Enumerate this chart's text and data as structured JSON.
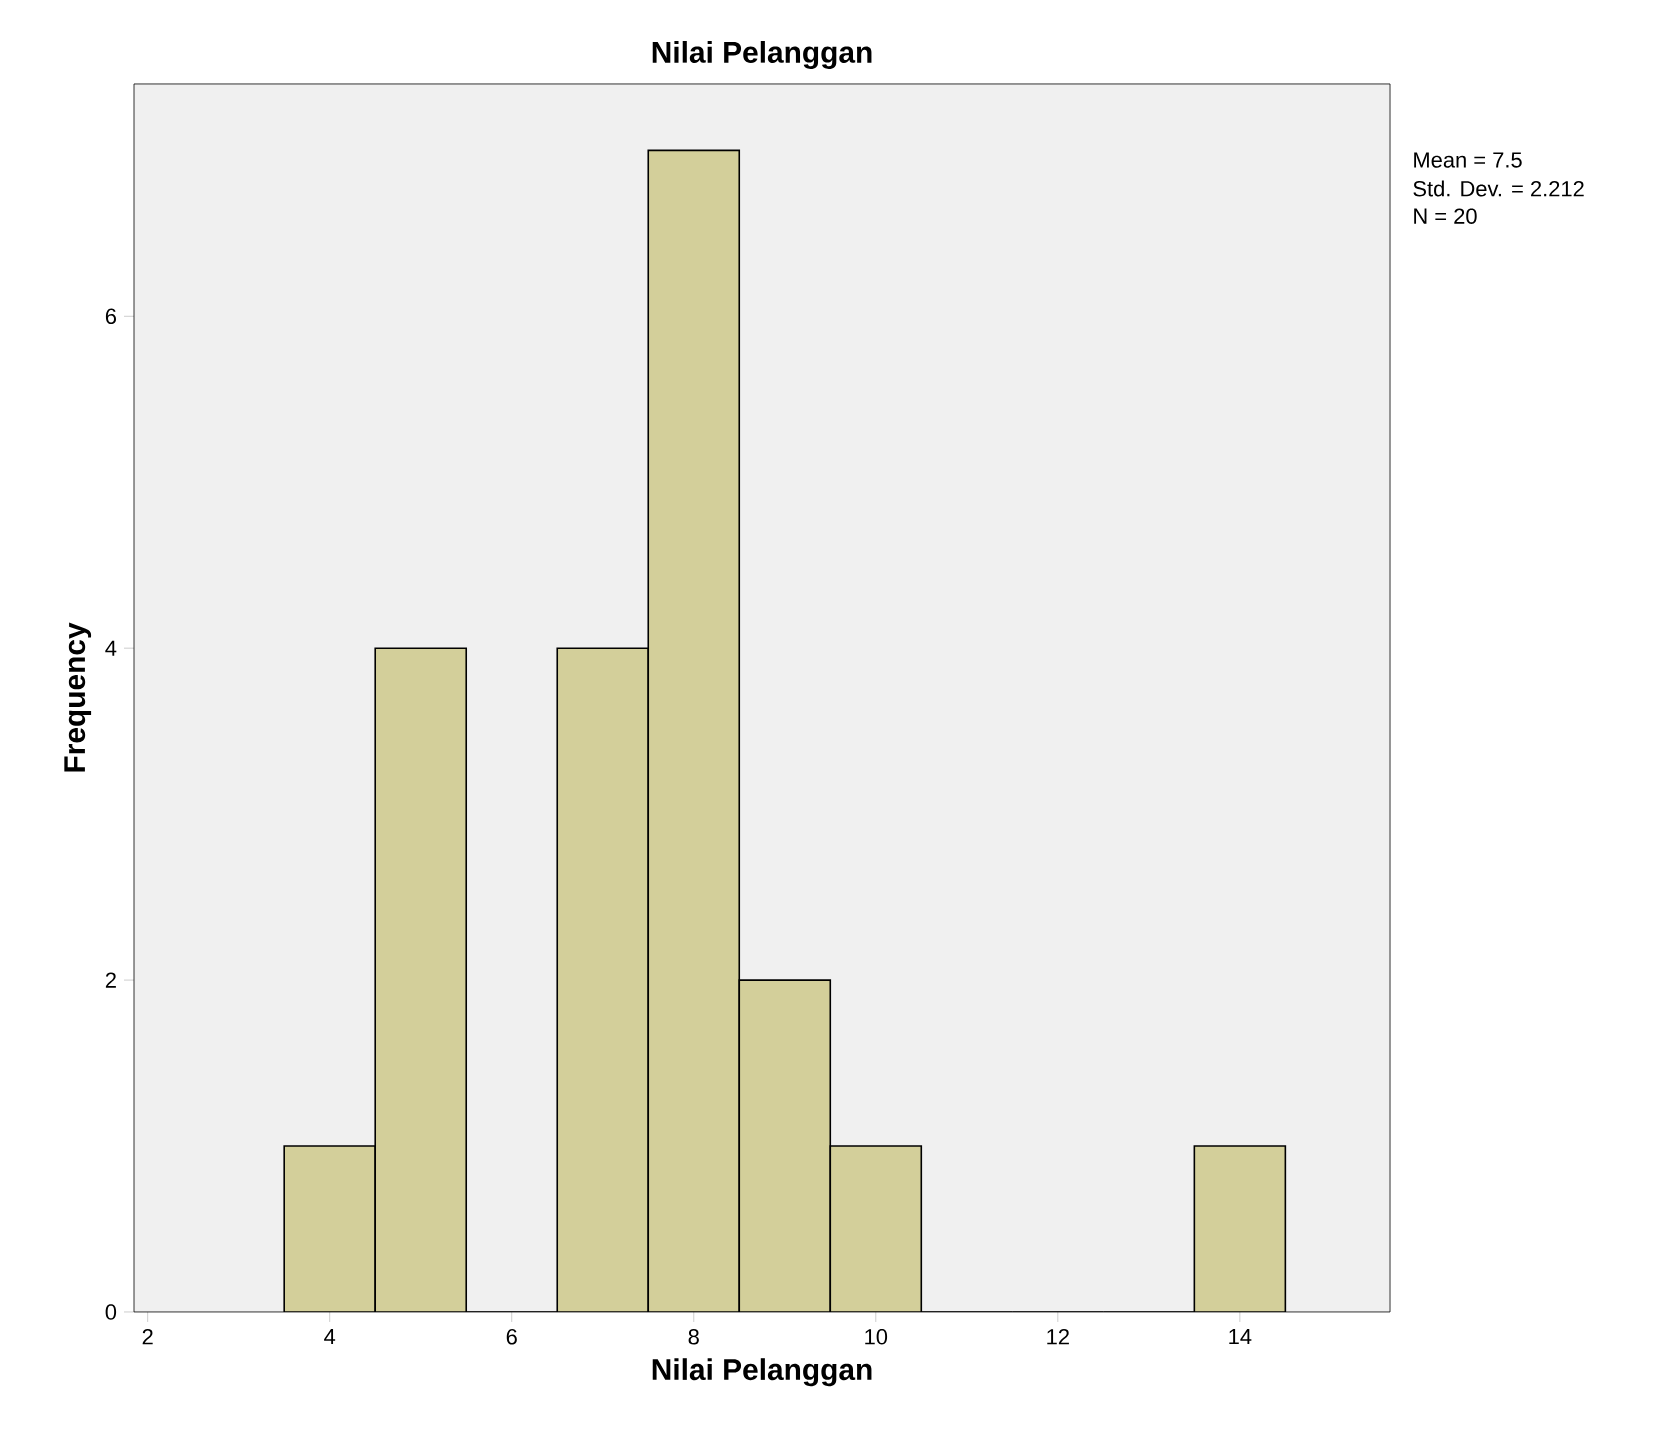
{
  "chart_data": {
    "type": "histogram",
    "title": "Nilai Pelanggan",
    "xlabel": "Nilai Pelanggan",
    "ylabel": "Frequency",
    "bins": [
      3.5,
      4.5,
      5.5,
      6.5,
      7.5,
      8.5,
      9.5,
      10.5,
      11.5,
      12.5,
      13.5,
      14.5
    ],
    "values": [
      1,
      4,
      0,
      4,
      7,
      2,
      1,
      0,
      0,
      0,
      1
    ],
    "color": "#d3cf9a",
    "xlim": [
      1.85,
      15.65
    ],
    "ylim": [
      0,
      7.4
    ],
    "xticks": [
      2,
      4,
      6,
      8,
      10,
      12,
      14
    ],
    "yticks": [
      0,
      2,
      4,
      6
    ],
    "grid": false,
    "annotations": [
      "Mean = 7.5",
      "Std. Dev. = 2.212",
      "N = 20"
    ]
  }
}
